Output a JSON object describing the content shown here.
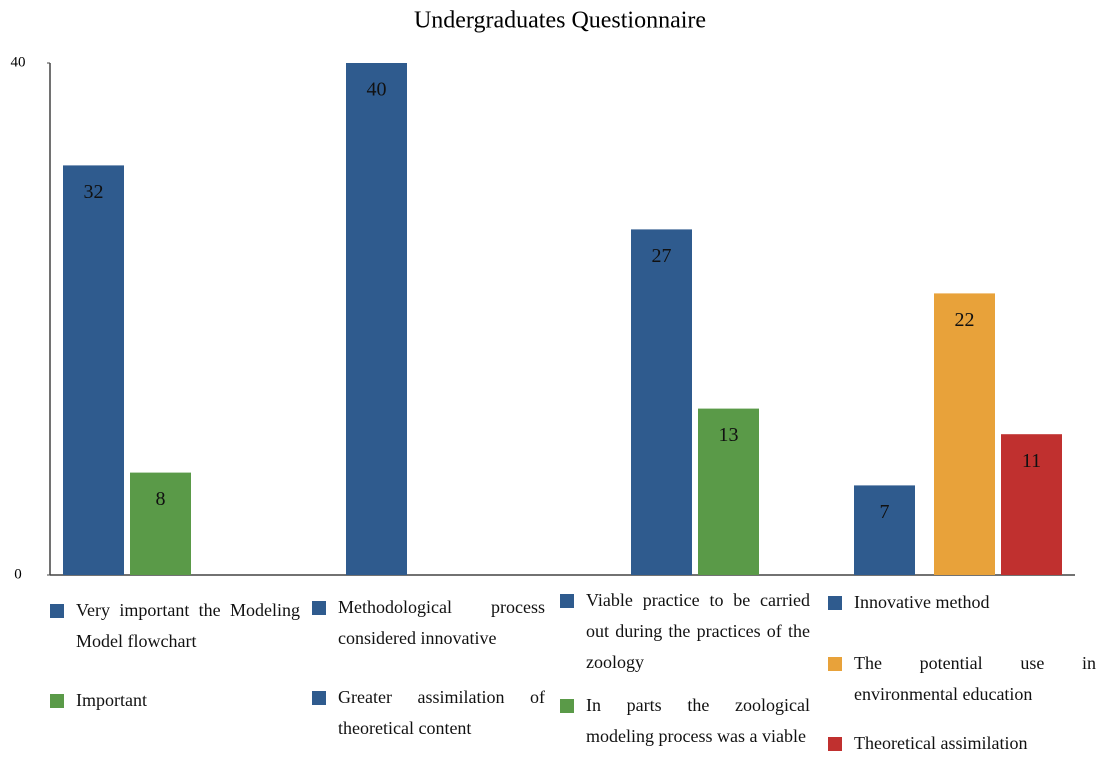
{
  "chart_data": {
    "type": "bar",
    "title": "Undergraduates Questionnaire",
    "ylim": [
      0,
      40
    ],
    "yticks": [
      0,
      40
    ],
    "groups": [
      {
        "bars": [
          {
            "name": "Very important the Modeling Model flowchart",
            "color": "#2f5b8e",
            "value": 32
          },
          {
            "name": "Important",
            "color": "#5a9a48",
            "value": 8
          }
        ]
      },
      {
        "bars": [
          {
            "name": "Methodological process considered innovative",
            "color": "#2f5b8e",
            "value": 40
          },
          {
            "name": "Greater assimilation of theoretical content",
            "color": "#2f5b8e",
            "value": null
          }
        ]
      },
      {
        "bars": [
          {
            "name": "Viable practice to be carried out during the practices of the zoology",
            "color": "#2f5b8e",
            "value": 27
          },
          {
            "name": "In parts the zoological modeling process was a viable",
            "color": "#5a9a48",
            "value": 13
          }
        ]
      },
      {
        "bars": [
          {
            "name": "Innovative method",
            "color": "#2f5b8e",
            "value": 7
          },
          {
            "name": "The potential use in environmental education",
            "color": "#e8a23a",
            "value": 22
          },
          {
            "name": "Theoretical assimilation",
            "color": "#c0302f",
            "value": 11
          }
        ]
      }
    ]
  }
}
